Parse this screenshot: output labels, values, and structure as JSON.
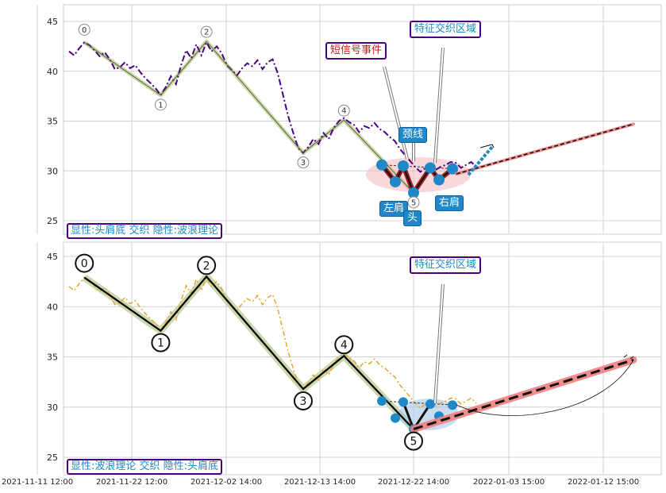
{
  "chart_data": [
    {
      "type": "line",
      "title": "",
      "xlabel": "",
      "ylabel": "",
      "ylim": [
        23.5,
        46.5
      ],
      "yticks": [
        25,
        30,
        35,
        40,
        45
      ],
      "grid": true,
      "colors": {
        "price": "#4b0082",
        "zigzag": "#556b2f",
        "wave_fill": "#c5d3a3",
        "pattern": "#8b0000",
        "forecast": "#f08080",
        "accent": "#1e88c8"
      },
      "series": [
        {
          "values": [
            42.0,
            41.6,
            42.3,
            42.9,
            42.6,
            42.1,
            41.5,
            41.9,
            41.2,
            40.2,
            40.4,
            40.9,
            40.3,
            40.6,
            39.9,
            39.3,
            38.8,
            38.3,
            37.6,
            38.4,
            39.5,
            38.7,
            40.6,
            42.1,
            41.3,
            42.7,
            41.6,
            42.9,
            42.0,
            42.5,
            41.8,
            40.6,
            40.1,
            39.6,
            40.3,
            40.8,
            40.5,
            41.1,
            40.2,
            40.9,
            41.2,
            39.8,
            37.7,
            35.6,
            33.9,
            32.3,
            31.8,
            32.4,
            33.2,
            32.7,
            33.8,
            33.2,
            34.3,
            35.0,
            35.3,
            34.9,
            34.6,
            33.9,
            34.5,
            34.3,
            34.8,
            34.2,
            33.9,
            33.4,
            33.0,
            32.2,
            31.6,
            31.0,
            30.4,
            29.9,
            30.3,
            30.7,
            30.1,
            30.4,
            30.6,
            30.9,
            30.8,
            30.3,
            30.6,
            30.9,
            30.4
          ]
        }
      ],
      "zigzag_points": [
        {
          "label": "0",
          "value": 42.9
        },
        {
          "label": "1",
          "value": 37.6
        },
        {
          "label": "2",
          "value": 43.0
        },
        {
          "label": "3",
          "value": 31.8
        },
        {
          "label": "4",
          "value": 35.1
        },
        {
          "label": "5",
          "value": 27.8
        }
      ],
      "pattern_points": [
        30.6,
        28.9,
        30.5,
        27.8,
        30.3,
        29.1,
        30.2
      ],
      "forecast": {
        "from": 29.7,
        "to": 34.7
      },
      "annotations": {
        "feature_region": "特征交织区域",
        "short_signal": "短信号事件",
        "neckline": "颈线",
        "left_shoulder": "左肩",
        "head": "头",
        "right_shoulder": "右肩",
        "head_marker": "5"
      },
      "caption": "显性:头肩底 交织 隐性:波浪理论"
    },
    {
      "type": "line",
      "title": "",
      "xlabel": "",
      "ylabel": "",
      "ylim": [
        23.5,
        46.5
      ],
      "yticks": [
        25,
        30,
        35,
        40,
        45
      ],
      "grid": true,
      "colors": {
        "price": "#e8a020",
        "zigzag": "#000000",
        "wave_fill": "#c5d3a3",
        "pattern_fill": "#a9c6e6",
        "forecast": "#f08080",
        "accent": "#1e88c8"
      },
      "series": [
        {
          "values": [
            42.0,
            41.6,
            42.3,
            42.9,
            42.6,
            42.1,
            41.5,
            41.9,
            41.2,
            40.2,
            40.4,
            40.9,
            40.3,
            40.6,
            39.9,
            39.3,
            38.8,
            38.3,
            37.6,
            38.4,
            39.5,
            38.7,
            40.6,
            42.1,
            41.3,
            42.7,
            41.6,
            42.9,
            42.0,
            42.5,
            41.8,
            40.6,
            40.1,
            39.6,
            40.3,
            40.8,
            40.5,
            41.1,
            40.2,
            40.9,
            41.2,
            39.8,
            37.7,
            35.6,
            33.9,
            32.3,
            31.8,
            32.4,
            33.2,
            32.7,
            33.8,
            33.2,
            34.3,
            35.0,
            35.3,
            34.9,
            34.6,
            33.9,
            34.5,
            34.3,
            34.8,
            34.2,
            33.9,
            33.4,
            33.0,
            32.2,
            31.6,
            31.0,
            30.4,
            29.9,
            30.3,
            30.7,
            30.1,
            30.4,
            30.6,
            30.9,
            30.8,
            30.3,
            30.6,
            30.9,
            30.4
          ]
        }
      ],
      "zigzag_points": [
        {
          "label": "0",
          "value": 42.9
        },
        {
          "label": "1",
          "value": 37.6
        },
        {
          "label": "2",
          "value": 43.0
        },
        {
          "label": "3",
          "value": 31.8
        },
        {
          "label": "4",
          "value": 35.1
        },
        {
          "label": "5",
          "value": 27.8
        }
      ],
      "pattern_points": [
        30.6,
        28.9,
        30.5,
        27.8,
        30.3,
        29.1,
        30.2
      ],
      "forecast": {
        "from": 27.8,
        "to": 34.7
      },
      "annotations": {
        "feature_region": "特征交织区域"
      },
      "caption": "显性:波浪理论 交织 隐性:头肩底"
    }
  ],
  "x_axis": {
    "ticks": [
      "2021-11-11 12:00",
      "2021-11-22 12:00",
      "2021-12-02 14:00",
      "2021-12-13 14:00",
      "2021-12-22 14:00",
      "2022-01-03 15:00",
      "2022-01-12 15:00"
    ]
  }
}
